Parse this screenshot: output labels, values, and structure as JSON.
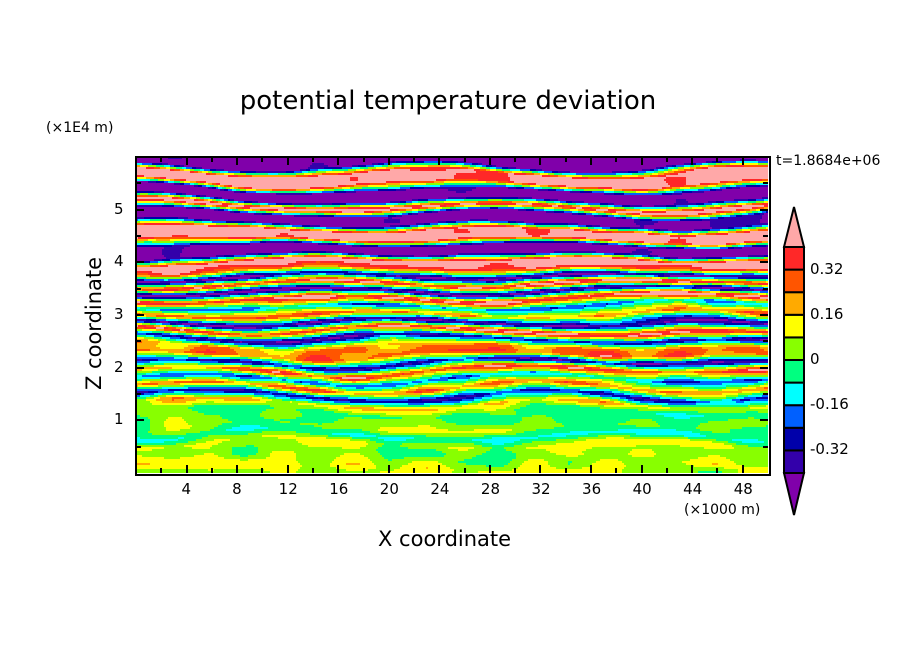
{
  "chart_data": {
    "type": "heatmap",
    "title": "potential temperature deviation",
    "xlabel": "X coordinate",
    "ylabel": "Z coordinate",
    "x_unit": "(×1000 m)",
    "y_unit": "(×1E4 m)",
    "time_label": "t=1.8684e+06",
    "xlim": [
      0,
      50
    ],
    "ylim": [
      0,
      6
    ],
    "x_ticks": [
      4,
      8,
      12,
      16,
      20,
      24,
      28,
      32,
      36,
      40,
      44,
      48
    ],
    "y_ticks": [
      1,
      2,
      3,
      4,
      5
    ],
    "levels": [
      -0.4,
      -0.32,
      -0.24,
      -0.16,
      -0.08,
      0,
      0.08,
      0.16,
      0.24,
      0.32,
      0.4
    ],
    "level_colors": [
      "#8000AA",
      "#3300AA",
      "#0000AA",
      "#0060FF",
      "#00FFFF",
      "#00FF80",
      "#88FF00",
      "#FFFF00",
      "#FFAA00",
      "#FF5500",
      "#FF2828",
      "#FFA8A8"
    ],
    "colorbar_labels": [
      "0.32",
      "0.16",
      "0",
      "-0.16",
      "-0.32"
    ],
    "colorbar_label_values": [
      0.32,
      0.16,
      0,
      -0.16,
      -0.32
    ],
    "z_profile_step": 0.15,
    "z_profile_values": [
      0.05,
      0.1,
      0.05,
      0.02,
      0.08,
      -0.1,
      0.05,
      0.02,
      -0.05,
      0.15,
      -0.3,
      0.3,
      -0.2,
      0.35,
      -0.35,
      0.3,
      0.2,
      -0.35,
      0.45,
      -0.45,
      0.25,
      -0.2,
      0.45,
      -0.45,
      0.45,
      -0.45,
      0.3,
      0.5,
      -0.5,
      -0.5,
      0.5,
      0.5,
      -0.5,
      -0.5,
      0.5,
      -0.5,
      -0.5,
      0.5,
      0.5,
      -0.5,
      -0.5
    ]
  }
}
